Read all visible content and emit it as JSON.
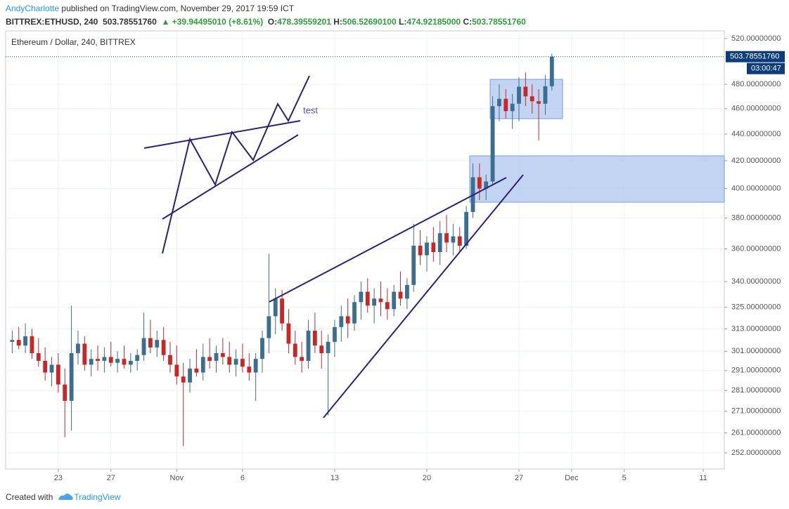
{
  "header": {
    "author": "AndyCharlotte",
    "published": "published on TradingView.com, November 29, 2017 19:59 ICT",
    "symbol": "BITTREX:ETHUSD, 240",
    "last": "503.78551760",
    "change": "▲ +39.94495010 (+8.61%)",
    "ohlc": [
      {
        "key": "O:",
        "value": "478.39559201"
      },
      {
        "key": "H:",
        "value": "506.52690100"
      },
      {
        "key": "L:",
        "value": "474.92185000"
      },
      {
        "key": "C:",
        "value": "503.78551760"
      }
    ]
  },
  "footer": {
    "created": "Created with",
    "brand": "TradingView"
  },
  "chart_data": {
    "type": "candlestick",
    "title": "Ethereum / Dollar, 240, BITTREX",
    "log_scale": true,
    "grid": true,
    "up_color": "#3b6e8f",
    "down_color": "#c62828",
    "annotations": [
      {
        "text": "test"
      }
    ],
    "price_label": {
      "value": 503.7855176,
      "label": "503.78551760"
    },
    "countdown": "03:00:47",
    "xlim": [
      19,
      73.6
    ],
    "xticks": [
      {
        "value": 23,
        "label": "23"
      },
      {
        "value": 27,
        "label": "27"
      },
      {
        "value": 32,
        "label": "Nov"
      },
      {
        "value": 37,
        "label": "6"
      },
      {
        "value": 44,
        "label": "13"
      },
      {
        "value": 51,
        "label": "20"
      },
      {
        "value": 58,
        "label": "27"
      },
      {
        "value": 62,
        "label": "Dec"
      },
      {
        "value": 66,
        "label": "5"
      },
      {
        "value": 72,
        "label": "11"
      }
    ],
    "ylim": [
      245,
      527
    ],
    "yticks": [
      {
        "value": 252,
        "label": "252.00000000"
      },
      {
        "value": 261,
        "label": "261.00000000"
      },
      {
        "value": 271,
        "label": "271.00000000"
      },
      {
        "value": 281,
        "label": "281.00000000"
      },
      {
        "value": 291,
        "label": "291.00000000"
      },
      {
        "value": 301,
        "label": "301.00000000"
      },
      {
        "value": 313,
        "label": "313.00000000"
      },
      {
        "value": 325,
        "label": "325.00000000"
      },
      {
        "value": 340,
        "label": "340.00000000"
      },
      {
        "value": 360,
        "label": "360.00000000"
      },
      {
        "value": 380,
        "label": "380.00000000"
      },
      {
        "value": 400,
        "label": "400.00000000"
      },
      {
        "value": 420,
        "label": "420.00000000"
      },
      {
        "value": 440,
        "label": "440.00000000"
      },
      {
        "value": 460,
        "label": "460.00000000"
      },
      {
        "value": 480,
        "label": "480.00000000"
      },
      {
        "value": 520,
        "label": "520.00000000"
      }
    ],
    "x": [
      19.5,
      20,
      20.5,
      21,
      21.5,
      22,
      22.5,
      23,
      23.5,
      24,
      24.5,
      25,
      25.5,
      26,
      26.5,
      27,
      27.5,
      28,
      28.5,
      29,
      29.5,
      30,
      30.5,
      31,
      31.5,
      32,
      32.5,
      33,
      33.5,
      34,
      34.5,
      35,
      35.5,
      36,
      36.5,
      37,
      37.5,
      38,
      38.5,
      39,
      39.5,
      40,
      40.5,
      41,
      41.5,
      42,
      42.5,
      43,
      43.5,
      44,
      44.5,
      45,
      45.5,
      46,
      46.5,
      47,
      47.5,
      48,
      48.5,
      49,
      49.5,
      50,
      50.5,
      51,
      51.5,
      52,
      52.5,
      53,
      53.5,
      54,
      54.5,
      55,
      55.5,
      56,
      56.5,
      57,
      57.5,
      58,
      58.5,
      59,
      59.5,
      60,
      60.5
    ],
    "open": [
      306,
      307,
      304,
      309,
      300,
      296,
      290,
      294,
      284,
      276,
      300,
      305,
      294,
      297,
      296,
      298,
      295,
      297,
      294,
      296,
      299,
      308,
      303,
      307,
      299,
      294,
      288,
      285,
      292,
      290,
      298,
      296,
      300,
      298,
      294,
      297,
      293,
      290,
      297,
      308,
      320,
      330,
      316,
      305,
      298,
      296,
      312,
      304,
      300,
      306,
      314,
      320,
      316,
      328,
      334,
      326,
      330,
      328,
      324,
      334,
      330,
      338,
      362,
      356,
      364,
      358,
      370,
      364,
      368,
      362,
      384,
      408,
      400,
      405,
      462,
      468,
      458,
      464,
      478,
      470,
      466,
      464,
      478.39559201
    ],
    "high": [
      312,
      314,
      316,
      313,
      308,
      303,
      298,
      300,
      292,
      326,
      312,
      309,
      302,
      304,
      303,
      306,
      301,
      304,
      300,
      302,
      322,
      318,
      312,
      314,
      306,
      304,
      295,
      297,
      302,
      305,
      308,
      304,
      308,
      306,
      302,
      305,
      300,
      300,
      312,
      357,
      336,
      335,
      324,
      312,
      306,
      318,
      322,
      312,
      310,
      318,
      326,
      330,
      332,
      340,
      342,
      336,
      340,
      336,
      338,
      346,
      342,
      376,
      372,
      368,
      374,
      378,
      382,
      376,
      374,
      388,
      418,
      418,
      410,
      470,
      480,
      476,
      472,
      486,
      490,
      480,
      476,
      488,
      506.526901
    ],
    "low": [
      300,
      302,
      300,
      297,
      293,
      286,
      283,
      280,
      259,
      262,
      294,
      291,
      288,
      291,
      290,
      293,
      290,
      292,
      290,
      291,
      296,
      300,
      298,
      296,
      290,
      284,
      255,
      280,
      288,
      286,
      292,
      290,
      294,
      290,
      288,
      290,
      286,
      276,
      290,
      300,
      310,
      312,
      300,
      294,
      290,
      292,
      300,
      292,
      269,
      298,
      306,
      308,
      312,
      318,
      322,
      316,
      320,
      318,
      320,
      326,
      324,
      334,
      350,
      346,
      352,
      350,
      358,
      356,
      358,
      360,
      380,
      392,
      392,
      402,
      450,
      452,
      444,
      450,
      462,
      456,
      435,
      455,
      474.92185
    ],
    "close": [
      307,
      304,
      309,
      300,
      296,
      290,
      294,
      284,
      276,
      300,
      305,
      294,
      297,
      296,
      298,
      295,
      297,
      294,
      296,
      299,
      308,
      303,
      307,
      299,
      294,
      288,
      285,
      292,
      290,
      298,
      296,
      300,
      298,
      294,
      297,
      293,
      290,
      297,
      308,
      320,
      330,
      316,
      305,
      298,
      296,
      312,
      304,
      300,
      306,
      314,
      320,
      316,
      328,
      334,
      326,
      330,
      328,
      324,
      334,
      330,
      338,
      362,
      356,
      364,
      358,
      370,
      364,
      368,
      362,
      384,
      408,
      400,
      405,
      462,
      468,
      458,
      464,
      478,
      470,
      466,
      464,
      478.39559201,
      503.7855176
    ]
  }
}
